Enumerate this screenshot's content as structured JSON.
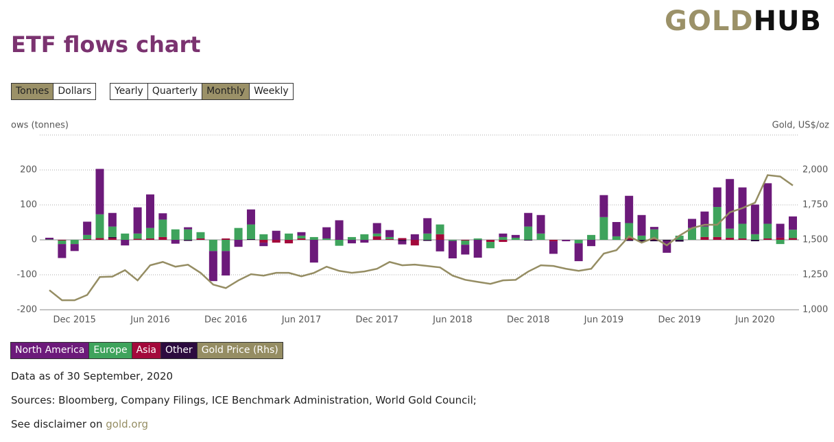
{
  "header": {
    "logo": [
      "GOLD",
      "HUB"
    ],
    "title": "ETF flows chart"
  },
  "controls": {
    "units": [
      {
        "label": "Tonnes",
        "selected": true
      },
      {
        "label": "Dollars",
        "selected": false
      }
    ],
    "periods": [
      {
        "label": "Yearly",
        "selected": false
      },
      {
        "label": "Quarterly",
        "selected": false
      },
      {
        "label": "Monthly",
        "selected": true
      },
      {
        "label": "Weekly",
        "selected": false
      }
    ]
  },
  "chart_data": {
    "type": "bar",
    "stacked": true,
    "y_label": "ows (tonnes)",
    "y2_label": "Gold, US$/oz",
    "categories": [
      null,
      null,
      "Dec 2015",
      null,
      null,
      null,
      null,
      null,
      "Jun 2016",
      null,
      null,
      null,
      null,
      null,
      "Dec 2016",
      null,
      null,
      null,
      null,
      null,
      "Jun 2017",
      null,
      null,
      null,
      null,
      null,
      "Dec 2017",
      null,
      null,
      null,
      null,
      null,
      "Jun 2018",
      null,
      null,
      null,
      null,
      null,
      "Dec 2018",
      null,
      null,
      null,
      null,
      null,
      "Jun 2019",
      null,
      null,
      null,
      null,
      null,
      "Dec 2019",
      null,
      null,
      null,
      null,
      null,
      "Jun 2020",
      null,
      null,
      null
    ],
    "ylim": [
      -200,
      300
    ],
    "yticks": [
      -200,
      -100,
      0,
      100,
      200
    ],
    "y2lim": [
      1000,
      2250
    ],
    "y2ticks": [
      {
        "value": 1000,
        "label": "1,000"
      },
      {
        "value": 1250,
        "label": "1,250"
      },
      {
        "value": 1500,
        "label": "1,500"
      },
      {
        "value": 1750,
        "label": "1,750"
      },
      {
        "value": 2000,
        "label": "2,000"
      }
    ],
    "grid": true,
    "series": [
      {
        "name": "North America",
        "color": "#6c1a7a",
        "values": [
          5,
          -40,
          -20,
          38,
          130,
          39,
          -16,
          75,
          96,
          18,
          -11,
          6,
          0,
          -86,
          -70,
          -20,
          43,
          -10,
          26,
          0,
          10,
          -65,
          32,
          56,
          -10,
          -8,
          30,
          20,
          -10,
          16,
          44,
          -33,
          -50,
          -28,
          -51,
          0,
          10,
          8,
          39,
          53,
          -36,
          -4,
          -51,
          -18,
          63,
          41,
          78,
          59,
          7,
          -34,
          0,
          26,
          43,
          56,
          142,
          104,
          85,
          116,
          40,
          38
        ]
      },
      {
        "name": "Europe",
        "color": "#3ea35c",
        "values": [
          1,
          -10,
          -12,
          12,
          68,
          30,
          18,
          15,
          30,
          50,
          30,
          30,
          18,
          -32,
          -32,
          34,
          42,
          16,
          0,
          18,
          8,
          8,
          4,
          -17,
          8,
          16,
          8,
          6,
          0,
          0,
          18,
          28,
          -3,
          -12,
          4,
          -18,
          8,
          6,
          38,
          18,
          0,
          0,
          -10,
          14,
          65,
          10,
          43,
          12,
          28,
          0,
          12,
          34,
          30,
          86,
          26,
          42,
          16,
          42,
          -12,
          24
        ]
      },
      {
        "name": "Asia",
        "color": "#a3093b",
        "values": [
          0,
          -2,
          0,
          2,
          5,
          5,
          0,
          3,
          4,
          8,
          0,
          0,
          4,
          0,
          4,
          0,
          0,
          -8,
          -8,
          -10,
          4,
          0,
          0,
          0,
          0,
          0,
          10,
          2,
          5,
          -16,
          0,
          16,
          0,
          -2,
          0,
          -6,
          -6,
          0,
          0,
          0,
          -4,
          0,
          0,
          0,
          0,
          0,
          5,
          0,
          2,
          0,
          0,
          0,
          8,
          8,
          6,
          4,
          0,
          4,
          6,
          5
        ]
      },
      {
        "name": "Other",
        "color": "#2c0b3f",
        "values": [
          0,
          0,
          0,
          0,
          0,
          3,
          0,
          0,
          0,
          0,
          0,
          -3,
          0,
          0,
          0,
          0,
          2,
          0,
          0,
          0,
          0,
          0,
          0,
          0,
          0,
          0,
          0,
          0,
          -3,
          0,
          -3,
          0,
          0,
          0,
          0,
          0,
          0,
          0,
          -2,
          0,
          0,
          0,
          0,
          0,
          0,
          0,
          -3,
          -5,
          -4,
          -3,
          -5,
          0,
          0,
          0,
          0,
          0,
          -4,
          0,
          0,
          0
        ]
      },
      {
        "name": "Gold Price (Rhs)",
        "color": "#958d63",
        "type": "line",
        "axis": "y2",
        "values": [
          1140,
          1068,
          1068,
          1106,
          1234,
          1237,
          1283,
          1210,
          1318,
          1342,
          1308,
          1322,
          1264,
          1180,
          1155,
          1210,
          1254,
          1244,
          1264,
          1264,
          1239,
          1264,
          1308,
          1278,
          1264,
          1274,
          1293,
          1342,
          1318,
          1323,
          1313,
          1303,
          1244,
          1214,
          1199,
          1185,
          1210,
          1214,
          1273,
          1318,
          1313,
          1293,
          1278,
          1293,
          1402,
          1426,
          1525,
          1480,
          1515,
          1461,
          1530,
          1584,
          1608,
          1608,
          1697,
          1727,
          1766,
          1963,
          1953,
          1889
        ]
      }
    ]
  },
  "footer": {
    "as_of": "Data as of 30 September, 2020",
    "sources": "Sources: Bloomberg, Company Filings, ICE Benchmark Administration, World Gold Council;",
    "disclaimer": "See disclaimer on ",
    "link": "gold.org"
  }
}
